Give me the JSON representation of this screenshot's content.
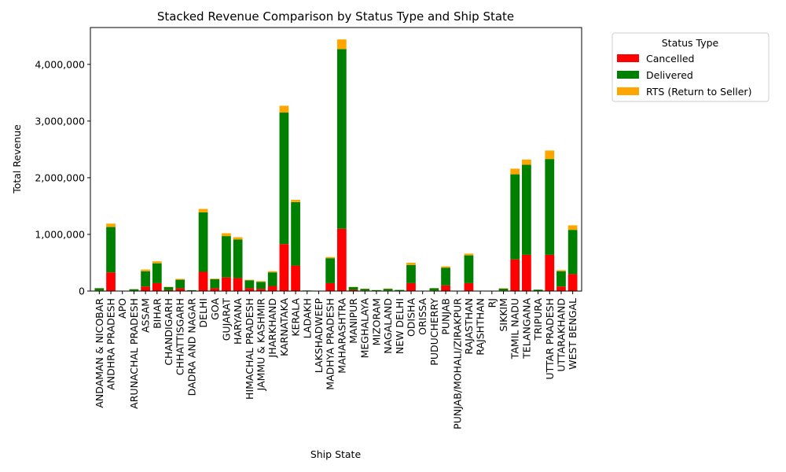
{
  "chart_data": {
    "type": "bar",
    "stacked": true,
    "title": "Stacked Revenue Comparison by Status Type and Ship State",
    "xlabel": "Ship State",
    "ylabel": "Total Revenue",
    "ylim": [
      0,
      4650000
    ],
    "yticks": [
      0,
      1000000,
      2000000,
      3000000,
      4000000
    ],
    "ytick_labels": [
      "0",
      "1,000,000",
      "2,000,000",
      "3,000,000",
      "4,000,000"
    ],
    "grid": false,
    "legend_title": "Status Type",
    "legend_position": "outside-upper-right",
    "categories": [
      "ANDAMAN & NICOBAR",
      "ANDHRA PRADESH",
      "APO",
      "ARUNACHAL PRADESH",
      "ASSAM",
      "BIHAR",
      "CHANDIGARH",
      "CHHATTISGARH",
      "DADRA AND NAGAR",
      "DELHI",
      "GOA",
      "GUJARAT",
      "HARYANA",
      "HIMACHAL PRADESH",
      "JAMMU & KASHMIR",
      "JHARKHAND",
      "KARNATAKA",
      "KERALA",
      "LADAKH",
      "LAKSHADWEEP",
      "MADHYA PRADESH",
      "MAHARASHTRA",
      "MANIPUR",
      "MEGHALAYA",
      "MIZORAM",
      "NAGALAND",
      "NEW DELHI",
      "ODISHA",
      "ORISSA",
      "PUDUCHERRY",
      "PUNJAB",
      "PUNJAB/MOHALI/ZIRAKPUR",
      "RAJASTHAN",
      "RAJSHTHAN",
      "RJ",
      "SIKKIM",
      "TAMIL NADU",
      "TELANGANA",
      "TRIPURA",
      "UTTAR PRADESH",
      "UTTARAKHAND",
      "WEST BENGAL"
    ],
    "series": [
      {
        "name": "Cancelled",
        "color": "#ff0000",
        "values": [
          10000,
          330000,
          0,
          8000,
          80000,
          140000,
          15000,
          50000,
          3000,
          340000,
          50000,
          240000,
          230000,
          50000,
          40000,
          90000,
          830000,
          450000,
          2000,
          0,
          140000,
          1100000,
          20000,
          10000,
          5000,
          10000,
          5000,
          140000,
          0,
          10000,
          100000,
          0,
          140000,
          0,
          0,
          10000,
          560000,
          640000,
          5000,
          640000,
          80000,
          300000
        ]
      },
      {
        "name": "Delivered",
        "color": "#008000",
        "values": [
          40000,
          800000,
          0,
          25000,
          270000,
          350000,
          55000,
          150000,
          12000,
          1050000,
          160000,
          730000,
          680000,
          140000,
          120000,
          240000,
          2320000,
          1120000,
          8000,
          0,
          440000,
          3170000,
          50000,
          30000,
          12000,
          30000,
          15000,
          320000,
          0,
          40000,
          310000,
          0,
          490000,
          0,
          0,
          35000,
          1500000,
          1590000,
          20000,
          1690000,
          270000,
          780000
        ]
      },
      {
        "name": "RTS (Return to Seller)",
        "color": "#ffa500",
        "values": [
          3000,
          60000,
          0,
          2000,
          30000,
          35000,
          5000,
          15000,
          1000,
          60000,
          10000,
          50000,
          40000,
          10000,
          15000,
          20000,
          120000,
          40000,
          500,
          0,
          20000,
          170000,
          5000,
          3000,
          2000,
          5000,
          1000,
          40000,
          0,
          3000,
          25000,
          0,
          30000,
          0,
          0,
          5000,
          100000,
          90000,
          2000,
          150000,
          20000,
          80000
        ]
      }
    ]
  }
}
